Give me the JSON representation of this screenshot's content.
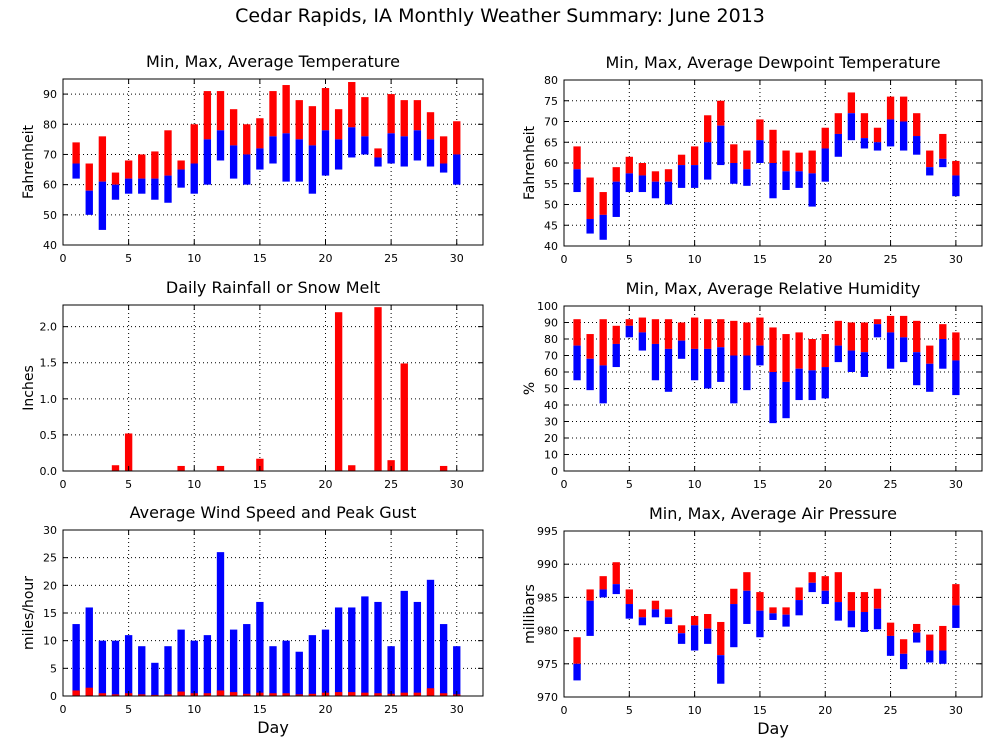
{
  "title": "Cedar Rapids, IA Monthly Weather Summary: June 2013",
  "colors": {
    "max": "#ff0000",
    "min": "#0000ff",
    "frame": "#000000",
    "grid": "#000000"
  },
  "chart_data": [
    {
      "id": "temperature",
      "type": "bar",
      "title": "Min, Max, Average Temperature",
      "xlabel": "",
      "ylabel": "Fahrenheit",
      "xlim": [
        0,
        32
      ],
      "ylim": [
        40,
        95
      ],
      "yticks": [
        40,
        50,
        60,
        70,
        80,
        90
      ],
      "xticks": [
        0,
        5,
        10,
        15,
        20,
        25,
        30
      ],
      "grid": true,
      "x": [
        1,
        2,
        3,
        4,
        5,
        6,
        7,
        8,
        9,
        10,
        11,
        12,
        13,
        14,
        15,
        16,
        17,
        18,
        19,
        20,
        21,
        22,
        23,
        24,
        25,
        26,
        27,
        28,
        29,
        30
      ],
      "series": [
        {
          "role": "max",
          "values": [
            74,
            67,
            76,
            64,
            68,
            70,
            71,
            78,
            68,
            80,
            91,
            91,
            85,
            80,
            82,
            91,
            93,
            88,
            86,
            92,
            85,
            94,
            89,
            72,
            90,
            88,
            88,
            84,
            76,
            81
          ]
        },
        {
          "role": "avg",
          "values": [
            67,
            58,
            61,
            60,
            62,
            62,
            62,
            63,
            65,
            67,
            75,
            78,
            73,
            70,
            72,
            76,
            77,
            75,
            73,
            78,
            75,
            79,
            76,
            69,
            77,
            76,
            78,
            75,
            67,
            70
          ]
        },
        {
          "role": "min",
          "values": [
            62,
            50,
            45,
            55,
            57,
            57,
            55,
            54,
            59,
            57,
            60,
            68,
            62,
            60,
            65,
            67,
            61,
            61,
            57,
            63,
            65,
            69,
            70,
            66,
            67,
            66,
            68,
            66,
            64,
            60
          ]
        }
      ]
    },
    {
      "id": "dewpoint",
      "type": "bar",
      "title": "Min, Max, Average Dewpoint Temperature",
      "xlabel": "",
      "ylabel": "Fahrenheit",
      "xlim": [
        0,
        32
      ],
      "ylim": [
        40,
        80
      ],
      "yticks": [
        40,
        45,
        50,
        55,
        60,
        65,
        70,
        75,
        80
      ],
      "xticks": [
        0,
        5,
        10,
        15,
        20,
        25,
        30
      ],
      "grid": true,
      "x": [
        1,
        2,
        3,
        4,
        5,
        6,
        7,
        8,
        9,
        10,
        11,
        12,
        13,
        14,
        15,
        16,
        17,
        18,
        19,
        20,
        21,
        22,
        23,
        24,
        25,
        26,
        27,
        28,
        29,
        30
      ],
      "series": [
        {
          "role": "max",
          "values": [
            64,
            56.5,
            53,
            59,
            61.5,
            60,
            58,
            58.5,
            62,
            64,
            71.5,
            75,
            64.5,
            63,
            70.5,
            68,
            63,
            62.5,
            63,
            68.5,
            72,
            77,
            72,
            68.5,
            76,
            76,
            72,
            63,
            67,
            60.5
          ]
        },
        {
          "role": "avg",
          "values": [
            58.5,
            46.5,
            47.5,
            55.5,
            57.5,
            57,
            55.5,
            55.5,
            59.5,
            59.5,
            65,
            69,
            60,
            58.5,
            65.5,
            60,
            58,
            58,
            57.5,
            63.5,
            67,
            72,
            66,
            65,
            70.5,
            70,
            66.5,
            59,
            61,
            57
          ]
        },
        {
          "role": "min",
          "values": [
            53,
            43,
            41.5,
            47,
            53,
            53,
            51.5,
            50,
            54,
            54,
            56,
            59.5,
            55,
            54.5,
            60,
            51.5,
            53.5,
            54,
            49.5,
            55.5,
            61.5,
            65.5,
            63.5,
            63,
            64,
            63,
            62,
            57,
            59,
            52
          ]
        }
      ]
    },
    {
      "id": "rainfall",
      "type": "bar",
      "title": "Daily Rainfall or Snow Melt",
      "xlabel": "",
      "ylabel": "Inches",
      "xlim": [
        0,
        32
      ],
      "ylim": [
        0,
        2.3
      ],
      "yticks": [
        0.0,
        0.5,
        1.0,
        1.5,
        2.0
      ],
      "ytick_labels": [
        "0.0",
        "0.5",
        "1.0",
        "1.5",
        "2.0"
      ],
      "xticks": [
        0,
        5,
        10,
        15,
        20,
        25,
        30
      ],
      "grid": true,
      "x": [
        1,
        2,
        3,
        4,
        5,
        6,
        7,
        8,
        9,
        10,
        11,
        12,
        13,
        14,
        15,
        16,
        17,
        18,
        19,
        20,
        21,
        22,
        23,
        24,
        25,
        26,
        27,
        28,
        29,
        30
      ],
      "values": [
        0,
        0,
        0,
        0.08,
        0.52,
        0,
        0,
        0,
        0.07,
        0,
        0,
        0.07,
        0,
        0,
        0.17,
        0,
        0,
        0,
        0,
        0,
        2.2,
        0.08,
        0,
        2.27,
        0.15,
        1.49,
        0,
        0,
        0.07,
        0
      ]
    },
    {
      "id": "humidity",
      "type": "bar",
      "title": "Min, Max, Average Relative Humidity",
      "xlabel": "",
      "ylabel": "%",
      "xlim": [
        0,
        32
      ],
      "ylim": [
        0,
        100
      ],
      "yticks": [
        0,
        10,
        20,
        30,
        40,
        50,
        60,
        70,
        80,
        90,
        100
      ],
      "xticks": [
        0,
        5,
        10,
        15,
        20,
        25,
        30
      ],
      "grid": true,
      "x": [
        1,
        2,
        3,
        4,
        5,
        6,
        7,
        8,
        9,
        10,
        11,
        12,
        13,
        14,
        15,
        16,
        17,
        18,
        19,
        20,
        21,
        22,
        23,
        24,
        25,
        26,
        27,
        28,
        29,
        30
      ],
      "series": [
        {
          "role": "max",
          "values": [
            92,
            83,
            92,
            88,
            92,
            93,
            92,
            92,
            90,
            93,
            92,
            92,
            91,
            90,
            93,
            87,
            83,
            84,
            80,
            83,
            91,
            90,
            90,
            92,
            94,
            94,
            91,
            76,
            89,
            84
          ]
        },
        {
          "role": "avg",
          "values": [
            76,
            68,
            64,
            77,
            88,
            84,
            77,
            74,
            79,
            74,
            74,
            75,
            70,
            70,
            76,
            60,
            54,
            62,
            61,
            63,
            76,
            73,
            72,
            89,
            84,
            81,
            72,
            65,
            80,
            67
          ]
        },
        {
          "role": "min",
          "values": [
            55,
            49,
            41,
            63,
            81,
            73,
            55,
            48,
            68,
            55,
            50,
            54,
            41,
            49,
            64,
            29,
            32,
            43,
            43,
            44,
            66,
            60,
            57,
            81,
            62,
            66,
            52,
            48,
            62,
            46
          ]
        }
      ]
    },
    {
      "id": "wind",
      "type": "bar",
      "title": "Average Wind Speed and Peak Gust",
      "xlabel": "Day",
      "ylabel": "miles/hour",
      "xlim": [
        0,
        32
      ],
      "ylim": [
        0,
        30
      ],
      "yticks": [
        0,
        5,
        10,
        15,
        20,
        25,
        30
      ],
      "xticks": [
        0,
        5,
        10,
        15,
        20,
        25,
        30
      ],
      "grid": true,
      "x": [
        1,
        2,
        3,
        4,
        5,
        6,
        7,
        8,
        9,
        10,
        11,
        12,
        13,
        14,
        15,
        16,
        17,
        18,
        19,
        20,
        21,
        22,
        23,
        24,
        25,
        26,
        27,
        28,
        29,
        30
      ],
      "series": [
        {
          "role": "peak_gust",
          "values": [
            13,
            16,
            10,
            10,
            11,
            9,
            6,
            9,
            12,
            10,
            11,
            26,
            12,
            13,
            17,
            9,
            10,
            8,
            11,
            12,
            16,
            16,
            18,
            17,
            9,
            19,
            17,
            21,
            13,
            9
          ]
        },
        {
          "role": "avg_speed",
          "values": [
            1,
            1.5,
            0.5,
            0.3,
            0.5,
            0.3,
            0.2,
            0.3,
            0.8,
            0.5,
            0.5,
            1,
            0.7,
            0.4,
            0.6,
            0.5,
            0.5,
            0.3,
            0.4,
            0.6,
            0.7,
            0.7,
            0.6,
            0.5,
            0.4,
            0.6,
            0.6,
            1.4,
            0.5,
            0.3
          ]
        }
      ]
    },
    {
      "id": "pressure",
      "type": "bar",
      "title": "Min, Max, Average Air Pressure",
      "xlabel": "Day",
      "ylabel": "millibars",
      "xlim": [
        0,
        32
      ],
      "ylim": [
        970,
        995
      ],
      "yticks": [
        970,
        975,
        980,
        985,
        990,
        995
      ],
      "xticks": [
        0,
        5,
        10,
        15,
        20,
        25,
        30
      ],
      "grid": true,
      "x": [
        1,
        2,
        3,
        4,
        5,
        6,
        7,
        8,
        9,
        10,
        11,
        12,
        13,
        14,
        15,
        16,
        17,
        18,
        19,
        20,
        21,
        22,
        23,
        24,
        25,
        26,
        27,
        28,
        29,
        30
      ],
      "series": [
        {
          "role": "max",
          "values": [
            979,
            986.2,
            988.2,
            990.3,
            986.2,
            983.2,
            984.5,
            983.2,
            980.8,
            982.2,
            982.5,
            981.3,
            986.3,
            988.8,
            985.8,
            983.5,
            983.5,
            986.5,
            988.8,
            988.2,
            988.8,
            985.8,
            985.8,
            986.3,
            981.2,
            978.7,
            981,
            979.4,
            980.7,
            987
          ]
        },
        {
          "role": "avg",
          "values": [
            975,
            984.5,
            986.2,
            987,
            984,
            982,
            983.2,
            982,
            979.6,
            980.8,
            980.3,
            976.3,
            984,
            986,
            983,
            982.6,
            982.4,
            984.6,
            987.2,
            986,
            984.3,
            983,
            982.8,
            983.3,
            979.2,
            976.5,
            979.7,
            977,
            977,
            983.8
          ]
        },
        {
          "role": "min",
          "values": [
            972.5,
            979.2,
            985,
            985.5,
            981.8,
            980.8,
            982,
            981,
            978,
            977,
            978,
            972,
            977.5,
            981,
            979,
            981.6,
            980.6,
            982.3,
            985.8,
            984,
            981.5,
            980.5,
            979.8,
            980.2,
            976.2,
            974.2,
            978.2,
            975.2,
            975,
            980.4
          ]
        }
      ]
    }
  ]
}
